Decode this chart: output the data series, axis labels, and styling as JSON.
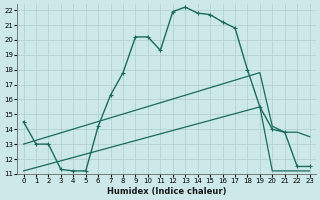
{
  "xlabel": "Humidex (Indice chaleur)",
  "background_color": "#cce8e8",
  "line_color": "#1a6b5e",
  "xlim": [
    -0.5,
    23.5
  ],
  "ylim": [
    11,
    22.4
  ],
  "x_ticks": [
    0,
    1,
    2,
    3,
    4,
    5,
    6,
    7,
    8,
    9,
    10,
    11,
    12,
    13,
    14,
    15,
    16,
    17,
    18,
    19,
    20,
    21,
    22,
    23
  ],
  "y_ticks": [
    11,
    12,
    13,
    14,
    15,
    16,
    17,
    18,
    19,
    20,
    21,
    22
  ],
  "series": [
    {
      "x": [
        0,
        1,
        2,
        3,
        4,
        5,
        6,
        7,
        8,
        9,
        10,
        11,
        12,
        13,
        14,
        15,
        16,
        17,
        18,
        19,
        20,
        21,
        22,
        23
      ],
      "y": [
        14.5,
        13.0,
        13.0,
        11.3,
        11.2,
        11.2,
        14.2,
        16.3,
        17.8,
        20.2,
        20.2,
        19.3,
        21.9,
        22.2,
        21.8,
        21.7,
        21.2,
        20.8,
        18.0,
        15.5,
        14.0,
        13.8,
        11.5,
        11.5
      ],
      "has_marker": true,
      "markersize": 2.5,
      "linewidth": 1.0
    },
    {
      "x": [
        0,
        19,
        20,
        21,
        22,
        23
      ],
      "y": [
        13.0,
        17.8,
        14.2,
        13.8,
        13.8,
        13.5
      ],
      "has_marker": false,
      "linewidth": 0.9
    },
    {
      "x": [
        0,
        19,
        20,
        21,
        22,
        23
      ],
      "y": [
        11.2,
        15.5,
        11.2,
        11.2,
        11.2,
        11.2
      ],
      "has_marker": false,
      "linewidth": 0.9
    }
  ]
}
